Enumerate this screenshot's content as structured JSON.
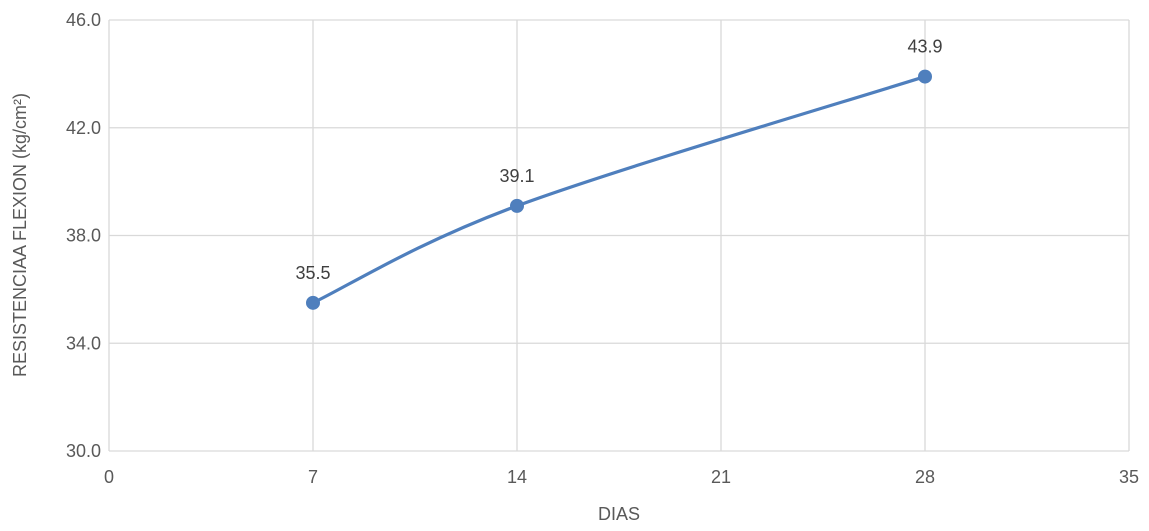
{
  "chart_data": {
    "type": "scatter",
    "title": "",
    "xlabel": "DIAS",
    "ylabel": "RESISTENCIAA FLEXION (kg/cm²)",
    "xlim": [
      0,
      35
    ],
    "ylim": [
      30.0,
      46.0
    ],
    "x_ticks": [
      "0",
      "7",
      "14",
      "21",
      "28",
      "35"
    ],
    "y_ticks": [
      "30.0",
      "34.0",
      "38.0",
      "42.0",
      "46.0"
    ],
    "grid": true,
    "legend": "none",
    "smooth_line": true,
    "series": [
      {
        "color": "#4f7fbd",
        "x": [
          7,
          14,
          28
        ],
        "y": [
          35.5,
          39.1,
          43.9
        ],
        "labels": [
          "35.5",
          "39.1",
          "43.9"
        ]
      }
    ]
  }
}
